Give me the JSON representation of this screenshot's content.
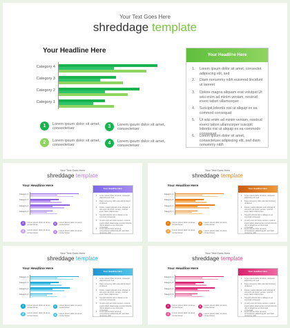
{
  "subtitle": "Your Text Goes Here",
  "title_main": "shreddage",
  "title_accent": "template",
  "headline": "Your Headline Here",
  "box_header": "Your Headline Here",
  "categories": [
    "Category 4",
    "Category 3",
    "Category 2",
    "Category 1"
  ],
  "chart_data": {
    "type": "bar",
    "orientation": "horizontal",
    "categories": [
      "Category 4",
      "Category 3",
      "Category 2",
      "Category 1"
    ],
    "series": [
      {
        "values": [
          4.3,
          2.5,
          3.5,
          2.0
        ]
      },
      {
        "values": [
          2.4,
          1.8,
          2.0,
          1.5
        ]
      },
      {
        "values": [
          3.8,
          2.8,
          3.0,
          2.4
        ]
      }
    ],
    "xlim": [
      0,
      4.5
    ]
  },
  "legend_items": [
    {
      "num": "1",
      "text": "Lorem ipsum dolor sit amet, consectetuer"
    },
    {
      "num": "2",
      "text": "Lorem ipsum dolor sit amet, consectetuer"
    },
    {
      "num": "3",
      "text": "Lorem ipsum dolor sit amet, consectetuer"
    },
    {
      "num": "4",
      "text": "Lorem ipsum dolor sit amet, consectetuer"
    }
  ],
  "list_items": [
    {
      "num": "1.",
      "text": "Lorem ipsum dolor sit amet, consectet adipiscing elit, sed"
    },
    {
      "num": "2.",
      "text": "Diam nonummy nibh euismod tincidunt ut laoreet"
    },
    {
      "num": "3.",
      "text": "Dolore magna aliquam erat volutpat Ut wisi enim ad minim veniam, nostrud exerc tation ullamcorper"
    },
    {
      "num": "4.",
      "text": "Suscipit lobortis nisl ut aliquip ex ea commod consequat"
    },
    {
      "num": "5.",
      "text": "Ut wisi enim ad minim veniam, nostrud exerci tation ullamcorper suscipit lobortis nisl ut aliquip ex ea commodo consequat."
    },
    {
      "num": "6.",
      "text": "Lorem ipsum dolor sit amet, consectetuer adipiscing elit, sed diam nonummy nibh"
    }
  ],
  "themes": [
    {
      "name": "green",
      "accent": "#7cc242",
      "series": [
        "#18b34f",
        "#2ec46a",
        "#8fd460"
      ],
      "circles": [
        "#18b34f",
        "#8fd460",
        "#18b34f",
        "#18b34f"
      ],
      "head": [
        "#5fbf3c",
        "#8fd460"
      ]
    },
    {
      "name": "purple",
      "accent": "#b27ee0",
      "series": [
        "#8a5fe0",
        "#b48cf0",
        "#cdb4f7"
      ],
      "circles": [
        "#8a5fe0",
        "#c6a6f3",
        "#8a5fe0",
        "#b48cf0"
      ],
      "head": [
        "#7b68e6",
        "#a88cf2"
      ]
    },
    {
      "name": "orange",
      "accent": "#e88a1c",
      "series": [
        "#e87c12",
        "#f2a348",
        "#f7c58a"
      ],
      "circles": [
        "#e87c12",
        "#f2a348",
        "#e87c12",
        "#f2a348"
      ],
      "head": [
        "#c85c10",
        "#f09a3a"
      ]
    },
    {
      "name": "blue",
      "accent": "#2ab3d8",
      "series": [
        "#1ba8d6",
        "#4fc4e8",
        "#8fdbf2"
      ],
      "circles": [
        "#1ba8d6",
        "#4fc4e8",
        "#1ba8d6",
        "#4fc4e8"
      ],
      "head": [
        "#1e97d2",
        "#4fc4e8"
      ]
    },
    {
      "name": "pink",
      "accent": "#e8478a",
      "series": [
        "#d8216e",
        "#ec5a98",
        "#f49bc1"
      ],
      "circles": [
        "#d8216e",
        "#ec5a98",
        "#d8216e",
        "#ec5a98"
      ],
      "head": [
        "#d8216e",
        "#f06aa4"
      ]
    }
  ]
}
